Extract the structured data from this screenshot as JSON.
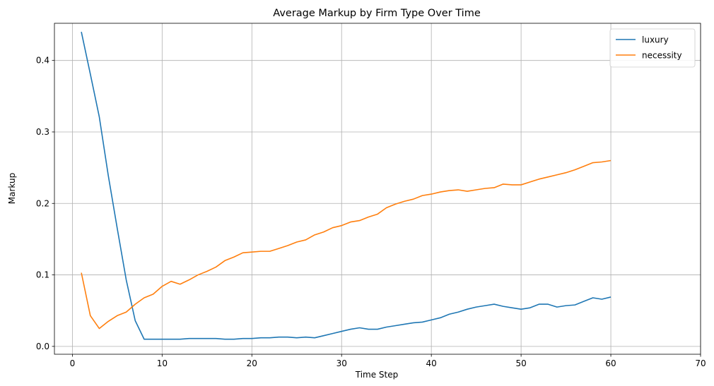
{
  "chart_data": {
    "type": "line",
    "title": "Average Markup by Firm Type Over Time",
    "xlabel": "Time Step",
    "ylabel": "Markup",
    "xlim": [
      -2,
      70
    ],
    "ylim": [
      -0.011,
      0.452
    ],
    "xticks": [
      0,
      10,
      20,
      30,
      40,
      50,
      60,
      70
    ],
    "yticks": [
      0.0,
      0.1,
      0.2,
      0.3,
      0.4
    ],
    "grid": true,
    "legend_position": "top-right",
    "x": [
      1,
      2,
      3,
      4,
      5,
      6,
      7,
      8,
      9,
      10,
      11,
      12,
      13,
      14,
      15,
      16,
      17,
      18,
      19,
      20,
      21,
      22,
      23,
      24,
      25,
      26,
      27,
      28,
      29,
      30,
      31,
      32,
      33,
      34,
      35,
      36,
      37,
      38,
      39,
      40,
      41,
      42,
      43,
      44,
      45,
      46,
      47,
      48,
      49,
      50,
      51,
      52,
      53,
      54,
      55,
      56,
      57,
      58,
      59,
      60
    ],
    "series": [
      {
        "name": "luxury",
        "color": "#1f77b4",
        "values": [
          0.44,
          0.381,
          0.321,
          0.239,
          0.165,
          0.093,
          0.036,
          0.01,
          0.01,
          0.01,
          0.01,
          0.01,
          0.011,
          0.011,
          0.011,
          0.011,
          0.01,
          0.01,
          0.011,
          0.011,
          0.012,
          0.012,
          0.013,
          0.013,
          0.012,
          0.013,
          0.012,
          0.015,
          0.018,
          0.021,
          0.024,
          0.026,
          0.024,
          0.024,
          0.027,
          0.029,
          0.031,
          0.033,
          0.034,
          0.037,
          0.04,
          0.045,
          0.048,
          0.052,
          0.055,
          0.057,
          0.059,
          0.056,
          0.054,
          0.052,
          0.054,
          0.059,
          0.059,
          0.055,
          0.057,
          0.058,
          0.063,
          0.068,
          0.066,
          0.069
        ]
      },
      {
        "name": "necessity",
        "color": "#ff7f0e",
        "values": [
          0.103,
          0.043,
          0.025,
          0.035,
          0.043,
          0.048,
          0.059,
          0.068,
          0.073,
          0.084,
          0.091,
          0.087,
          0.093,
          0.1,
          0.105,
          0.111,
          0.12,
          0.125,
          0.131,
          0.132,
          0.133,
          0.133,
          0.137,
          0.141,
          0.146,
          0.149,
          0.156,
          0.16,
          0.166,
          0.169,
          0.174,
          0.176,
          0.181,
          0.185,
          0.194,
          0.199,
          0.203,
          0.206,
          0.211,
          0.213,
          0.216,
          0.218,
          0.219,
          0.217,
          0.219,
          0.221,
          0.222,
          0.227,
          0.226,
          0.226,
          0.23,
          0.234,
          0.237,
          0.24,
          0.243,
          0.247,
          0.252,
          0.257,
          0.258,
          0.26
        ]
      }
    ]
  }
}
